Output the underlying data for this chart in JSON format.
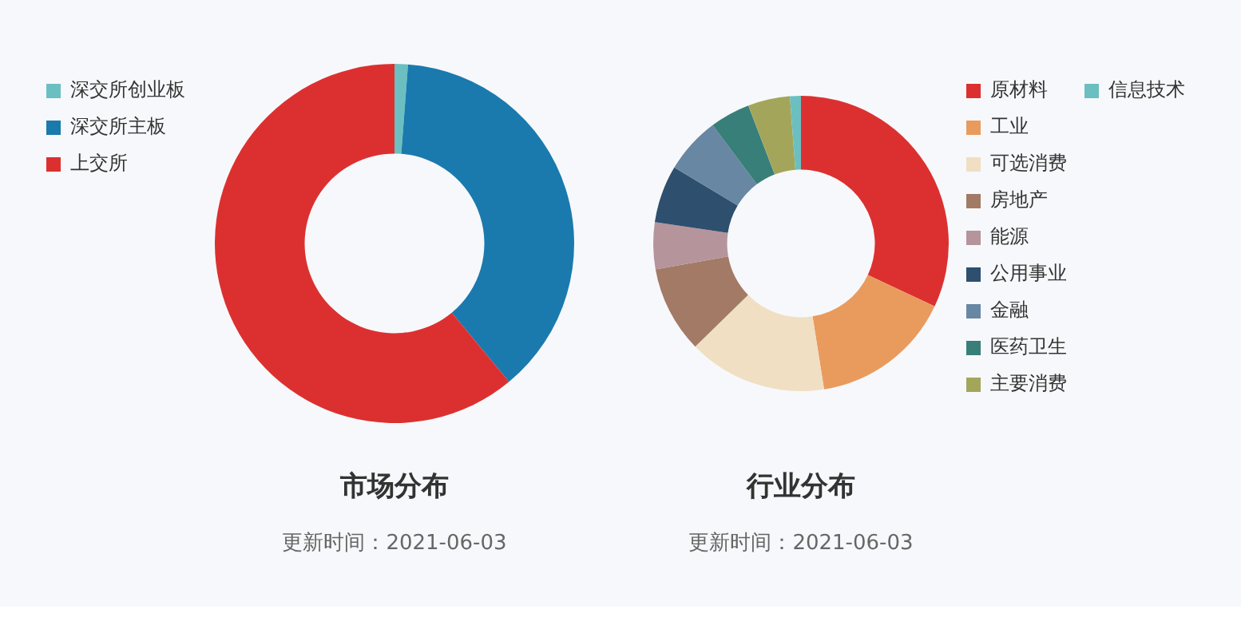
{
  "chart_data": [
    {
      "type": "donut",
      "title": "市场分布",
      "subtitle": "更新时间：2021-06-03",
      "categories": [
        "深交所创业板",
        "深交所主板",
        "上交所"
      ],
      "values": [
        1.2,
        37.8,
        61
      ],
      "colors": [
        "#6bbfc0",
        "#1a7aad",
        "#dc3030"
      ],
      "legend": "top left"
    },
    {
      "type": "donut",
      "title": "行业分布",
      "subtitle": "更新时间：2021-06-03",
      "categories": [
        "原材料",
        "工业",
        "可选消费",
        "房地产",
        "能源",
        "公用事业",
        "金融",
        "医药卫生",
        "主要消费",
        "信息技术"
      ],
      "values": [
        32,
        15.5,
        15.2,
        9.5,
        5.1,
        6.3,
        6.2,
        4.4,
        4.6,
        1.2
      ],
      "colors": [
        "#dc3030",
        "#e99b5e",
        "#f0dfc3",
        "#a37a65",
        "#b5949c",
        "#2e4f6e",
        "#6887a3",
        "#387f7a",
        "#a3a65a",
        "#6bbfc0"
      ],
      "legend": "right"
    }
  ]
}
